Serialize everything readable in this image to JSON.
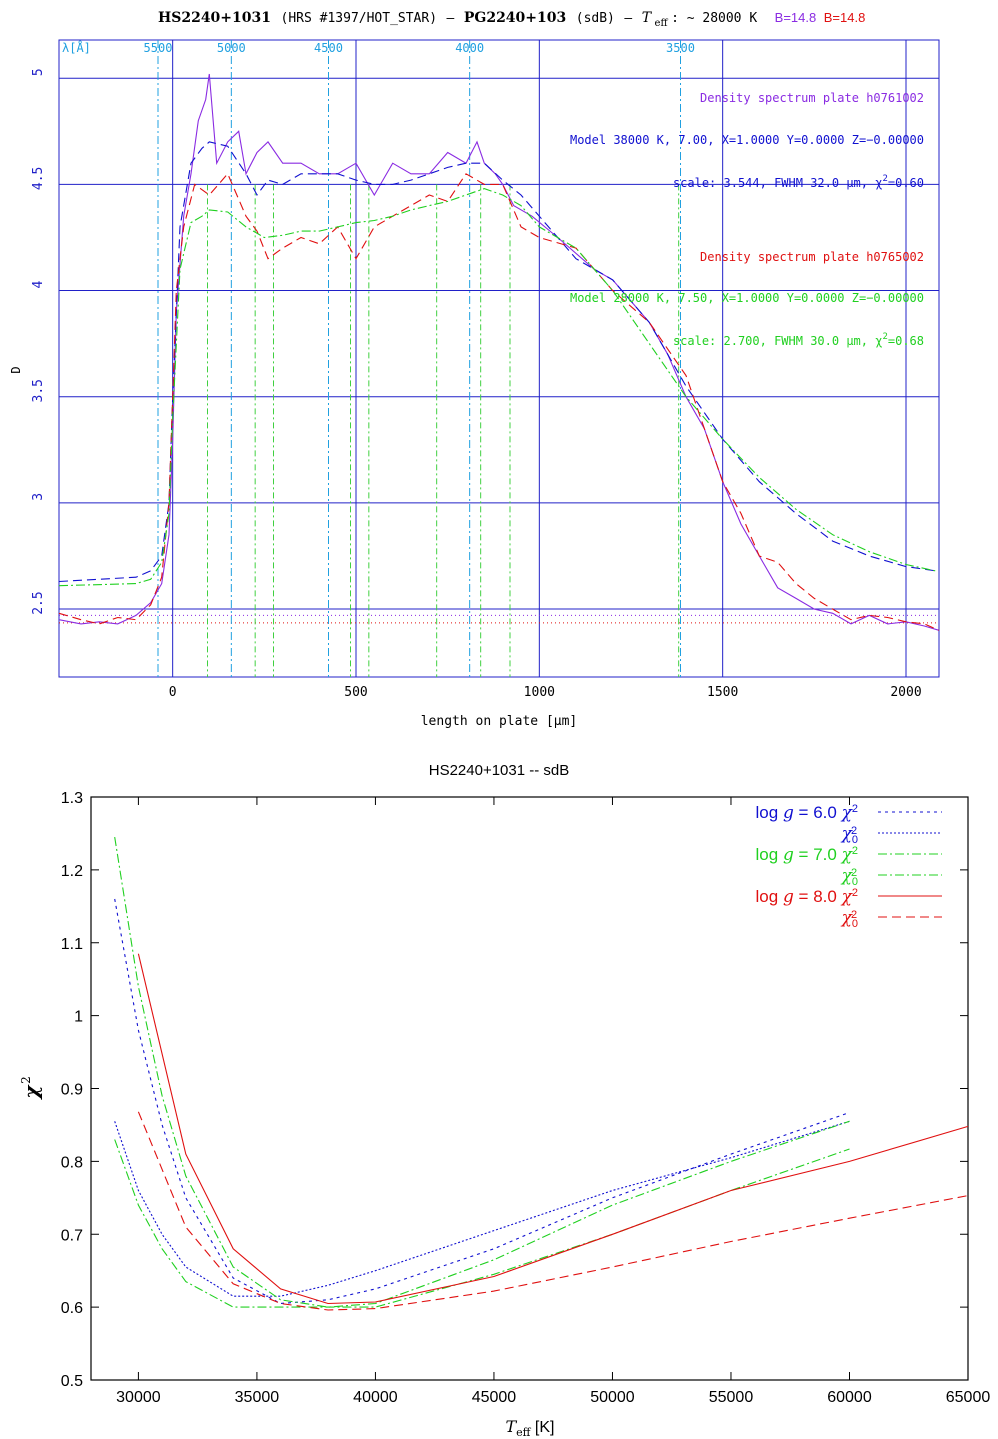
{
  "header": {
    "object": "HS2240+1031",
    "survey": "(HRS #1397/HOT_STAR)",
    "dash1": "–",
    "alias": "PG2240+103",
    "cls": "(sdB)",
    "dash2": "–",
    "teff_sym": "T",
    "teff_sub": "eff",
    "teff_val": ": ~ 28000 K",
    "b1": "B=14.8",
    "b2": "B=14.8"
  },
  "colors": {
    "blue": "#1010d0",
    "axis_blue": "#2020c8",
    "cyan": "#20a0e0",
    "purple": "#8a2be2",
    "red": "#e01010",
    "green": "#20d020",
    "light_green": "#60e060",
    "black": "#000000"
  },
  "top_chart": {
    "lambda_label": "λ[Å]",
    "lambda_ticks": [
      "5500",
      "5000",
      "4500",
      "4000",
      "3500"
    ],
    "annotations": {
      "purple_plate": "Density spectrum plate h0761002",
      "blue_model": "Model 38000 K, 7.00, X=1.0000 Y=0.0000 Z=−0.00000",
      "blue_scale_pre": "scale: 3.544, FWHM 32.0 μm,  χ",
      "blue_scale_post": "=0.60",
      "red_plate": "Density spectrum plate h0765002",
      "green_model": "Model 28000 K, 7.50, X=1.0000 Y=0.0000 Z=−0.00000",
      "green_scale_pre": "scale: 2.700, FWHM 30.0 μm,  χ",
      "green_scale_post": "=0.68",
      "sq": "2"
    }
  },
  "bottom_chart": {
    "legend": [
      {
        "prefix": "log",
        "g": "g",
        "eq": " = 6.0",
        "chi": "χ",
        "sup": "2",
        "sub": ""
      },
      {
        "prefix": "",
        "g": "",
        "eq": "",
        "chi": "χ",
        "sup": "2",
        "sub": "0"
      },
      {
        "prefix": "log",
        "g": "g",
        "eq": " = 7.0",
        "chi": "χ",
        "sup": "2",
        "sub": ""
      },
      {
        "prefix": "",
        "g": "",
        "eq": "",
        "chi": "χ",
        "sup": "2",
        "sub": "0"
      },
      {
        "prefix": "log",
        "g": "g",
        "eq": " = 8.0",
        "chi": "χ",
        "sup": "2",
        "sub": ""
      },
      {
        "prefix": "",
        "g": "",
        "eq": "",
        "chi": "χ",
        "sup": "2",
        "sub": "0"
      }
    ]
  },
  "chart_data": [
    {
      "type": "line",
      "title": "HS2240+1031 (HRS #1397/HOT_STAR) – PG2240+103 (sdB) – Teff: ~ 28000 K  B=14.8 B=14.8",
      "xlabel": "length on plate [μm]",
      "ylabel": "D",
      "xlim": [
        -310,
        2090
      ],
      "ylim": [
        2.18,
        5.18
      ],
      "x_ticks": [
        0,
        500,
        1000,
        1500,
        2000
      ],
      "y_ticks": [
        2.5,
        3,
        3.5,
        4,
        4.5,
        5
      ],
      "grid": true,
      "secondary_x_axis": {
        "label": "λ[Å]",
        "ticks": [
          5500,
          5000,
          4500,
          4000,
          3500
        ]
      },
      "series": [
        {
          "name": "Density spectrum plate h0761002",
          "color": "#8a2be2",
          "style": "solid",
          "x": [
            -310,
            -250,
            -200,
            -150,
            -100,
            -60,
            -30,
            -10,
            0,
            10,
            30,
            50,
            70,
            90,
            100,
            120,
            150,
            180,
            200,
            230,
            260,
            300,
            350,
            400,
            450,
            500,
            550,
            600,
            650,
            700,
            750,
            800,
            830,
            850,
            880,
            900,
            930,
            980,
            1050,
            1150,
            1200,
            1250,
            1300,
            1350,
            1400,
            1450,
            1500,
            1550,
            1600,
            1650,
            1700,
            1750,
            1800,
            1850,
            1900,
            1950,
            2000,
            2050,
            2090
          ],
          "y": [
            2.45,
            2.43,
            2.44,
            2.43,
            2.47,
            2.53,
            2.62,
            2.85,
            3.3,
            3.9,
            4.35,
            4.55,
            4.8,
            4.9,
            5.02,
            4.6,
            4.7,
            4.75,
            4.55,
            4.65,
            4.7,
            4.6,
            4.6,
            4.55,
            4.55,
            4.6,
            4.45,
            4.6,
            4.55,
            4.55,
            4.65,
            4.6,
            4.7,
            4.6,
            4.55,
            4.5,
            4.4,
            4.35,
            4.25,
            4.1,
            4.05,
            3.95,
            3.85,
            3.7,
            3.5,
            3.35,
            3.1,
            2.9,
            2.75,
            2.6,
            2.55,
            2.5,
            2.48,
            2.43,
            2.47,
            2.43,
            2.44,
            2.42,
            2.4
          ]
        },
        {
          "name": "Model 38000 K, 7.00, X=1.0000 Y=0.0000 Z=−0.00000",
          "color": "#1010d0",
          "style": "dashed",
          "x": [
            -310,
            -100,
            -60,
            -30,
            -10,
            0,
            20,
            50,
            80,
            100,
            150,
            200,
            230,
            260,
            300,
            350,
            400,
            450,
            500,
            550,
            600,
            650,
            700,
            750,
            800,
            850,
            900,
            950,
            1000,
            1050,
            1100,
            1200,
            1300,
            1400,
            1500,
            1600,
            1700,
            1800,
            1900,
            2000,
            2080
          ],
          "y": [
            2.63,
            2.65,
            2.68,
            2.75,
            3.0,
            3.5,
            4.3,
            4.6,
            4.67,
            4.7,
            4.68,
            4.55,
            4.45,
            4.52,
            4.5,
            4.55,
            4.55,
            4.55,
            4.52,
            4.5,
            4.5,
            4.52,
            4.55,
            4.58,
            4.6,
            4.6,
            4.52,
            4.45,
            4.35,
            4.25,
            4.15,
            4.05,
            3.85,
            3.55,
            3.3,
            3.1,
            2.95,
            2.82,
            2.75,
            2.7,
            2.68
          ]
        },
        {
          "name": "Density spectrum plate h0765002",
          "color": "#e01010",
          "style": "dashed",
          "x": [
            -310,
            -250,
            -200,
            -150,
            -100,
            -60,
            -30,
            -10,
            0,
            10,
            30,
            60,
            100,
            150,
            200,
            230,
            260,
            300,
            350,
            400,
            450,
            500,
            550,
            600,
            650,
            700,
            750,
            800,
            850,
            900,
            950,
            1000,
            1100,
            1200,
            1300,
            1400,
            1500,
            1550,
            1600,
            1650,
            1700,
            1750,
            1800,
            1850,
            1900,
            1950,
            2000,
            2050,
            2090
          ],
          "y": [
            2.48,
            2.45,
            2.43,
            2.46,
            2.45,
            2.52,
            2.65,
            3.0,
            3.5,
            4.0,
            4.3,
            4.5,
            4.45,
            4.55,
            4.35,
            4.28,
            4.15,
            4.2,
            4.25,
            4.22,
            4.3,
            4.15,
            4.3,
            4.35,
            4.4,
            4.45,
            4.42,
            4.55,
            4.5,
            4.5,
            4.3,
            4.25,
            4.2,
            4.0,
            3.85,
            3.6,
            3.1,
            2.95,
            2.75,
            2.72,
            2.62,
            2.55,
            2.5,
            2.45,
            2.47,
            2.46,
            2.44,
            2.43,
            2.4
          ]
        },
        {
          "name": "Model 28000 K, 7.50, X=1.0000 Y=0.0000 Z=−0.00000",
          "color": "#20d020",
          "style": "dashdot",
          "x": [
            -310,
            -100,
            -60,
            -30,
            -10,
            0,
            20,
            50,
            80,
            100,
            150,
            200,
            250,
            300,
            350,
            400,
            450,
            500,
            550,
            600,
            650,
            700,
            750,
            800,
            850,
            900,
            950,
            1000,
            1100,
            1200,
            1300,
            1400,
            1500,
            1600,
            1700,
            1800,
            1900,
            2000,
            2080
          ],
          "y": [
            2.61,
            2.62,
            2.64,
            2.72,
            2.95,
            3.4,
            4.1,
            4.32,
            4.35,
            4.38,
            4.37,
            4.3,
            4.25,
            4.26,
            4.28,
            4.28,
            4.3,
            4.32,
            4.33,
            4.35,
            4.38,
            4.4,
            4.42,
            4.45,
            4.48,
            4.45,
            4.4,
            4.3,
            4.2,
            4.0,
            3.75,
            3.5,
            3.3,
            3.12,
            2.97,
            2.85,
            2.77,
            2.71,
            2.68
          ]
        }
      ]
    },
    {
      "type": "line",
      "title": "HS2240+1031  -- sdB",
      "xlabel": "Teff [K]",
      "ylabel": "χ2",
      "xlim": [
        28000,
        65000
      ],
      "ylim": [
        0.5,
        1.3
      ],
      "x_ticks": [
        30000,
        35000,
        40000,
        45000,
        50000,
        55000,
        60000,
        65000
      ],
      "y_ticks": [
        0.5,
        0.6,
        0.7,
        0.8,
        0.9,
        1.0,
        1.1,
        1.2,
        1.3
      ],
      "series": [
        {
          "name": "log g = 6.0 χ2",
          "color": "#1010d0",
          "style": "dotted-sparse",
          "x": [
            29000,
            30000,
            31000,
            32000,
            34000,
            36000,
            38000,
            40000,
            45000,
            50000,
            55000,
            60000
          ],
          "y": [
            1.16,
            0.98,
            0.85,
            0.75,
            0.64,
            0.605,
            0.61,
            0.625,
            0.68,
            0.75,
            0.81,
            0.867
          ]
        },
        {
          "name": "χ0 2 (log g = 6.0)",
          "color": "#1010d0",
          "style": "dotted",
          "x": [
            29000,
            30000,
            31000,
            32000,
            34000,
            36000,
            38000,
            40000,
            45000,
            50000,
            55000,
            60000
          ],
          "y": [
            0.855,
            0.76,
            0.7,
            0.655,
            0.615,
            0.615,
            0.63,
            0.65,
            0.705,
            0.76,
            0.805,
            0.855
          ]
        },
        {
          "name": "log g = 7.0 χ2",
          "color": "#20d020",
          "style": "dashdot",
          "x": [
            29000,
            30000,
            31000,
            32000,
            34000,
            36000,
            38000,
            40000,
            45000,
            50000,
            55000,
            60000
          ],
          "y": [
            1.245,
            1.04,
            0.89,
            0.78,
            0.655,
            0.61,
            0.6,
            0.605,
            0.665,
            0.74,
            0.8,
            0.855
          ]
        },
        {
          "name": "χ0 2 (log g = 7.0)",
          "color": "#20d020",
          "style": "dashdot",
          "x": [
            29000,
            30000,
            31000,
            32000,
            34000,
            36000,
            38000,
            40000,
            45000,
            50000,
            55000,
            60000
          ],
          "y": [
            0.83,
            0.74,
            0.68,
            0.635,
            0.6,
            0.6,
            0.6,
            0.6,
            0.645,
            0.7,
            0.76,
            0.817
          ]
        },
        {
          "name": "log g = 8.0 χ2",
          "color": "#e01010",
          "style": "solid",
          "x": [
            30000,
            32000,
            34000,
            36000,
            38000,
            40000,
            45000,
            50000,
            55000,
            60000,
            65000
          ],
          "y": [
            1.085,
            0.81,
            0.68,
            0.625,
            0.605,
            0.607,
            0.642,
            0.7,
            0.76,
            0.8,
            0.848
          ]
        },
        {
          "name": "χ0 2 (log g = 8.0)",
          "color": "#e01010",
          "style": "dashed",
          "x": [
            30000,
            32000,
            34000,
            36000,
            38000,
            40000,
            45000,
            50000,
            55000,
            60000,
            65000
          ],
          "y": [
            0.868,
            0.71,
            0.632,
            0.605,
            0.596,
            0.598,
            0.622,
            0.655,
            0.69,
            0.722,
            0.753
          ]
        }
      ]
    }
  ]
}
